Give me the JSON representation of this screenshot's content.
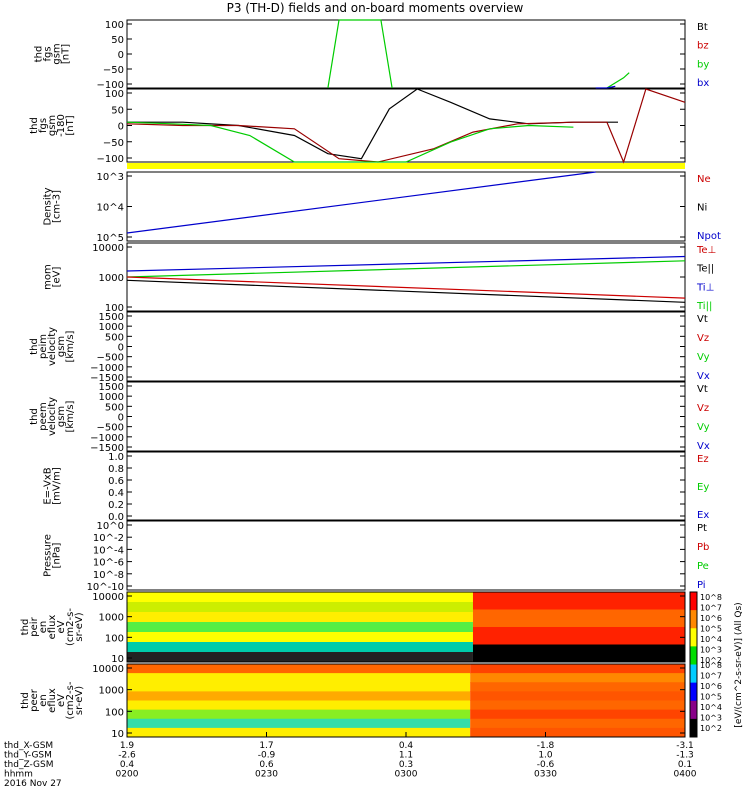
{
  "title": "P3 (TH-D) fields and on-board moments overview",
  "date_label": "2016 Nov 27",
  "colors": {
    "black": "#000000",
    "red": "#cc0000",
    "green": "#00cc00",
    "blue": "#0000cc",
    "yellow": "#ffff00",
    "darkred": "#990000"
  },
  "colorbar": {
    "label": "[eV/(cm^2-s-sr-eV)] (All Qs)",
    "ticks_top": [
      "10^8",
      "10^7",
      "10^6",
      "10^5",
      "10^4",
      "10^3",
      "10^2"
    ],
    "ticks_bottom": [
      "10^8",
      "10^7",
      "10^6",
      "10^5",
      "10^4",
      "10^3",
      "10^2"
    ]
  },
  "time_axis": {
    "rows": [
      {
        "label": "thd_X-GSM",
        "values": [
          "1.9",
          "1.7",
          "0.4",
          "-1.8",
          "-3.1"
        ]
      },
      {
        "label": "thd_Y-GSM",
        "values": [
          "-2.6",
          "-0.9",
          "1.1",
          "1.0",
          "-1.3"
        ]
      },
      {
        "label": "thd_Z-GSM",
        "values": [
          "0.4",
          "0.6",
          "0.3",
          "-0.6",
          "0.1"
        ]
      },
      {
        "label": "hhmm",
        "values": [
          "0200",
          "0230",
          "0300",
          "0330",
          "0400"
        ]
      }
    ]
  },
  "chart_data": [
    {
      "type": "line",
      "panel": "fgs",
      "ylabel_lines": [
        "thd",
        "fgs",
        "gsm",
        "[nT]"
      ],
      "ylim": [
        -100,
        100
      ],
      "yticks": [
        "100",
        "50",
        "0",
        "−50",
        "−100"
      ],
      "legend": [
        {
          "label": "Bt",
          "color": "#000000"
        },
        {
          "label": "bz",
          "color": "#cc0000"
        },
        {
          "label": "by",
          "color": "#00cc00"
        },
        {
          "label": "bx",
          "color": "#0000cc"
        }
      ],
      "series": [
        {
          "name": "by",
          "color": "#00cc00",
          "x": [
            0.36,
            0.38,
            0.455,
            0.475
          ],
          "y": [
            -100,
            100,
            100,
            -100
          ]
        },
        {
          "name": "by",
          "color": "#00cc00",
          "x": [
            0.86,
            0.89,
            0.9
          ],
          "y": [
            -100,
            -70,
            -55
          ]
        },
        {
          "name": "bx",
          "color": "#0000cc",
          "x": [
            0.84,
            0.86,
            0.875
          ],
          "y": [
            -100,
            -100,
            -95
          ]
        }
      ]
    },
    {
      "type": "line",
      "panel": "fgs-180",
      "ylabel_lines": [
        "thd",
        "fgs",
        "gsm",
        "-180",
        "[nT]"
      ],
      "ylim": [
        -120,
        100
      ],
      "yticks": [
        "100",
        "50",
        "0",
        "−50",
        "−100"
      ],
      "series": [
        {
          "name": "Bt",
          "color": "#000000",
          "x": [
            0.0,
            0.1,
            0.2,
            0.3,
            0.36,
            0.42,
            0.47,
            0.52,
            0.58,
            0.65,
            0.72,
            0.8,
            0.88
          ],
          "y": [
            0,
            0,
            -10,
            -40,
            -95,
            -110,
            40,
            100,
            60,
            10,
            -5,
            0,
            0
          ]
        },
        {
          "name": "bz",
          "color": "#990000",
          "x": [
            0.0,
            0.1,
            0.2,
            0.3,
            0.38,
            0.45,
            0.55,
            0.62,
            0.7,
            0.8,
            0.86,
            0.89,
            0.93,
            1.0
          ],
          "y": [
            -5,
            -10,
            -10,
            -20,
            -110,
            -120,
            -80,
            -30,
            -5,
            0,
            0,
            -120,
            100,
            60
          ]
        },
        {
          "name": "by",
          "color": "#00cc00",
          "x": [
            0.0,
            0.08,
            0.15,
            0.22,
            0.3,
            0.5,
            0.58,
            0.65,
            0.72,
            0.8
          ],
          "y": [
            0,
            -5,
            -10,
            -40,
            -120,
            -120,
            -60,
            -20,
            -10,
            -15
          ]
        }
      ]
    },
    {
      "type": "line",
      "panel": "density",
      "ylabel_lines": [
        "Density",
        "[cm-3]"
      ],
      "scale": "log",
      "yticks": [
        "10^3",
        "10^4",
        "10^5"
      ],
      "legend": [
        {
          "label": "Ne",
          "color": "#cc0000"
        },
        {
          "label": "Ni",
          "color": "#000000"
        },
        {
          "label": "Npot",
          "color": "#0000cc"
        }
      ],
      "series": [
        {
          "name": "Npot",
          "color": "#0000cc",
          "x": [
            0.0,
            0.84
          ],
          "y": [
            100000,
            500
          ]
        }
      ]
    },
    {
      "type": "line",
      "panel": "temperature",
      "ylabel_lines": [
        "mom",
        "[eV]"
      ],
      "scale": "log",
      "ylim": [
        100,
        10000
      ],
      "yticks": [
        "10000",
        "1000",
        "100"
      ],
      "legend": [
        {
          "label": "Te⊥",
          "color": "#cc0000"
        },
        {
          "label": "Te||",
          "color": "#000000"
        },
        {
          "label": "Ti⊥",
          "color": "#0000cc"
        },
        {
          "label": "Ti||",
          "color": "#00cc00"
        }
      ],
      "series": [
        {
          "name": "Ti⊥",
          "color": "#0000cc",
          "x": [
            0.0,
            1.0
          ],
          "y": [
            1500,
            4000
          ]
        },
        {
          "name": "Ti||",
          "color": "#00cc00",
          "x": [
            0.0,
            1.0
          ],
          "y": [
            1000,
            3000
          ]
        },
        {
          "name": "Te⊥",
          "color": "#cc0000",
          "x": [
            0.0,
            1.0
          ],
          "y": [
            1000,
            240
          ]
        },
        {
          "name": "Te||",
          "color": "#000000",
          "x": [
            0.0,
            1.0
          ],
          "y": [
            800,
            180
          ]
        }
      ]
    },
    {
      "type": "line",
      "panel": "peim",
      "ylabel_lines": [
        "thd",
        "peim",
        "velocity",
        "gsm",
        "[km/s]"
      ],
      "ylim": [
        -1500,
        1500
      ],
      "yticks": [
        "1500",
        "1000",
        "500",
        "0",
        "−500",
        "−1000",
        "−1500"
      ],
      "legend": [
        {
          "label": "Vt",
          "color": "#000000"
        },
        {
          "label": "Vz",
          "color": "#cc0000"
        },
        {
          "label": "Vy",
          "color": "#00cc00"
        },
        {
          "label": "Vx",
          "color": "#0000cc"
        }
      ],
      "series": []
    },
    {
      "type": "line",
      "panel": "peem",
      "ylabel_lines": [
        "thd",
        "peem",
        "velocity",
        "gsm",
        "[km/s]"
      ],
      "ylim": [
        -1500,
        1500
      ],
      "yticks": [
        "1500",
        "1000",
        "500",
        "0",
        "−500",
        "−1000",
        "−1500"
      ],
      "legend": [
        {
          "label": "Vt",
          "color": "#000000"
        },
        {
          "label": "Vz",
          "color": "#cc0000"
        },
        {
          "label": "Vy",
          "color": "#00cc00"
        },
        {
          "label": "Vx",
          "color": "#0000cc"
        }
      ],
      "series": []
    },
    {
      "type": "line",
      "panel": "efield",
      "ylabel_lines": [
        "E=-VxB",
        "[mV/m]"
      ],
      "ylim": [
        0,
        1
      ],
      "yticks": [
        "1.0",
        "0.8",
        "0.6",
        "0.4",
        "0.2",
        "0.0"
      ],
      "legend": [
        {
          "label": "Ez",
          "color": "#cc0000"
        },
        {
          "label": "Ey",
          "color": "#00cc00"
        },
        {
          "label": "Ex",
          "color": "#0000cc"
        }
      ],
      "series": []
    },
    {
      "type": "line",
      "panel": "pressure",
      "ylabel_lines": [
        "Pressure",
        "[nPa]"
      ],
      "scale": "log",
      "yticks": [
        "10^0",
        "10^-2",
        "10^-4",
        "10^-6",
        "10^-8",
        "10^-10"
      ],
      "legend": [
        {
          "label": "Pt",
          "color": "#000000"
        },
        {
          "label": "Pb",
          "color": "#cc0000"
        },
        {
          "label": "Pe",
          "color": "#00cc00"
        },
        {
          "label": "Pi",
          "color": "#0000cc"
        }
      ],
      "series": []
    },
    {
      "type": "heatmap",
      "panel": "peir",
      "ylabel_lines": [
        "thd",
        "peir",
        "en",
        "eflux",
        "eV",
        "(cm2-s-",
        "sr-eV)"
      ],
      "scale": "log",
      "yticks": [
        "10000",
        "1000",
        "100",
        "10"
      ],
      "x_split": 0.62,
      "bands_left": [
        "#ffff00",
        "#ccee00",
        "#ffee00",
        "#55ee44",
        "#ffff00",
        "#00ccaa",
        "#222222"
      ],
      "bands_right": [
        "#ff2200",
        "#ff6600",
        "#ff2200",
        "#000000"
      ]
    },
    {
      "type": "heatmap",
      "panel": "peer",
      "ylabel_lines": [
        "thd",
        "peer",
        "en",
        "eflux",
        "eV",
        "(cm2-s-",
        "sr-eV)"
      ],
      "scale": "log",
      "yticks": [
        "10000",
        "1000",
        "100",
        "10"
      ],
      "x_split": 0.615,
      "bands_left": [
        "#ff6600",
        "#ffee00",
        "#ffee00",
        "#ffaa00",
        "#ffee00",
        "#88ee22",
        "#33ddaa",
        "#ffee00"
      ],
      "bands_right": [
        "#ff4400",
        "#ff8800",
        "#ff6600",
        "#ff5500",
        "#ff6600",
        "#ff4400",
        "#ff6600",
        "#ff5500"
      ]
    }
  ]
}
